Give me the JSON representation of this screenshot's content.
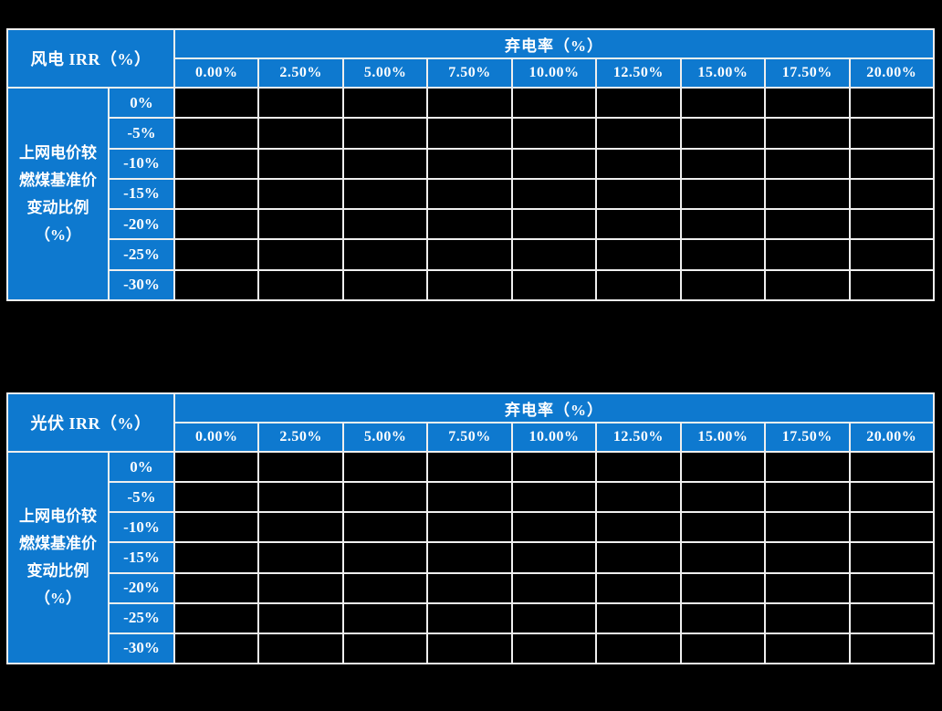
{
  "page": {
    "background_color": "#000000",
    "header_blue": "#0E79CF",
    "grid_color": "#EFEFEF",
    "text_color": "#FFFFFF"
  },
  "shared": {
    "col_group_label": "弃电率（%）",
    "col_headers": [
      "0.00%",
      "2.50%",
      "5.00%",
      "7.50%",
      "10.00%",
      "12.50%",
      "15.00%",
      "17.50%",
      "20.00%"
    ],
    "row_group_label_lines": [
      "上网电价较",
      "燃煤基准价",
      "变动比例",
      "（%）"
    ],
    "row_headers": [
      "0%",
      "-5%",
      "-10%",
      "-15%",
      "-20%",
      "-25%",
      "-30%"
    ]
  },
  "tables": [
    {
      "title": "风电 IRR（%）"
    },
    {
      "title": "光伏 IRR（%）"
    }
  ]
}
